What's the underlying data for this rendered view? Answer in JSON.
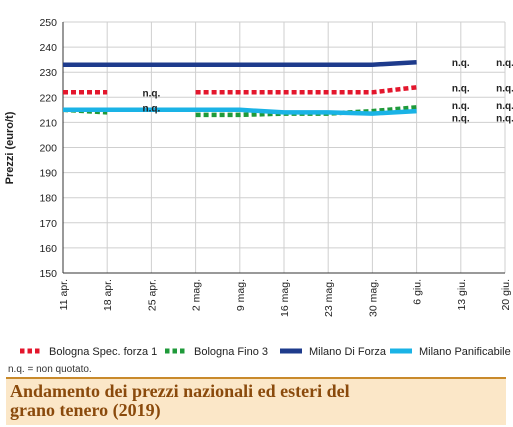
{
  "chart_data": {
    "type": "line",
    "ylabel": "Prezzi (euro/t)",
    "ylim": [
      150,
      250
    ],
    "yticks": [
      150,
      160,
      170,
      180,
      190,
      200,
      210,
      220,
      230,
      240,
      250
    ],
    "categories": [
      "11 apr.",
      "18 apr.",
      "25 apr.",
      "2 mag.",
      "9 mag.",
      "16 mag.",
      "23 mag.",
      "30 mag.",
      "6 giu.",
      "13 giu.",
      "20 giu."
    ],
    "grid": true,
    "legend_position": "bottom",
    "series": [
      {
        "name": "Bologna Spec. forza 1",
        "style": "dotted",
        "color": "#e3162c",
        "values": [
          222,
          222,
          null,
          222,
          222,
          222,
          222,
          222,
          224,
          null,
          null
        ]
      },
      {
        "name": "Bologna Fino 3",
        "style": "dotted",
        "color": "#1f9a3a",
        "values": [
          215,
          214,
          null,
          213,
          213,
          213.5,
          213.5,
          214.5,
          216,
          null,
          null
        ]
      },
      {
        "name": "Milano Di Forza",
        "style": "solid",
        "color": "#1e3b8c",
        "values": [
          233,
          233,
          233,
          233,
          233,
          233,
          233,
          233,
          234,
          null,
          null
        ]
      },
      {
        "name": "Milano Panificabile",
        "style": "solid",
        "color": "#1ab3e6",
        "values": [
          215,
          215,
          215,
          215,
          215,
          214,
          214,
          213.5,
          214.5,
          null,
          null
        ]
      }
    ],
    "annotations": [
      {
        "text": "n.q.",
        "category": "25 apr.",
        "value": 222
      },
      {
        "text": "n.q.",
        "category": "25 apr.",
        "value": 216
      },
      {
        "text": "n.q.",
        "category": "13 giu.",
        "value": 234
      },
      {
        "text": "n.q.",
        "category": "20 giu.",
        "value": 234
      },
      {
        "text": "n.q.",
        "category": "13 giu.",
        "value": 224
      },
      {
        "text": "n.q.",
        "category": "20 giu.",
        "value": 224
      },
      {
        "text": "n.q.",
        "category": "13 giu.",
        "value": 217
      },
      {
        "text": "n.q.",
        "category": "20 giu.",
        "value": 217
      },
      {
        "text": "n.q.",
        "category": "13 giu.",
        "value": 212
      },
      {
        "text": "n.q.",
        "category": "20 giu.",
        "value": 212
      }
    ]
  },
  "footnote": "n.q. = non quotato.",
  "title": "Andamento dei prezzi nazionali ed esteri del grano tenero (2019)"
}
